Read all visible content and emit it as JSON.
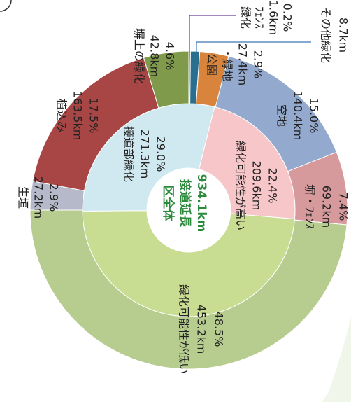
{
  "chart_data": {
    "type": "donut",
    "center_lines": [
      "区全体",
      "接道延長",
      "934.1km"
    ],
    "rings": [
      {
        "values": [
          209.6,
          453.2,
          271.3
        ],
        "value_labels": [
          "209.6km",
          null,
          "271.3km"
        ],
        "percent_labels": [
          "22.4%",
          null,
          "29.0%"
        ],
        "name_lines": [
          [
            "緑化可能性が高い"
          ],
          null,
          [
            "接道部緑化"
          ]
        ],
        "colors": [
          "#f6c6c9",
          "#c9dd92",
          "#d0e8ef"
        ]
      },
      {
        "values": [
          1.6,
          8.7,
          27.4,
          140.4,
          69.2,
          453.2,
          27.2,
          163.5,
          42.8
        ],
        "value_labels": [
          "1.6km",
          "8.7km",
          "27.4km",
          "140.4km",
          "69.2km",
          "453.2km",
          "27.2km",
          "163.5km",
          "42.8km"
        ],
        "percent_labels": [
          "0.2%",
          null,
          "2.9%",
          "15.0%",
          "7.4%",
          "48.5%",
          "2.9%",
          "17.5%",
          "4.6%"
        ],
        "name_lines": [
          [
            "緑化",
            "ﾌｪﾝｽ"
          ],
          [
            "その他緑化"
          ],
          [
            "公園",
            "・緑地"
          ],
          [
            "空地"
          ],
          [
            "塀・ﾌｪﾝｽ"
          ],
          [
            "緑化可能性が低い"
          ],
          [
            "生垣"
          ],
          [
            "植込み"
          ],
          [
            "塀上の緑化"
          ]
        ],
        "colors": [
          "#3a9aa8",
          "#2a6f8f",
          "#d9843c",
          "#93a9cd",
          "#d6999c",
          "#b7cd8f",
          "#b6b9c9",
          "#a84646",
          "#7f9a4a"
        ]
      }
    ]
  }
}
